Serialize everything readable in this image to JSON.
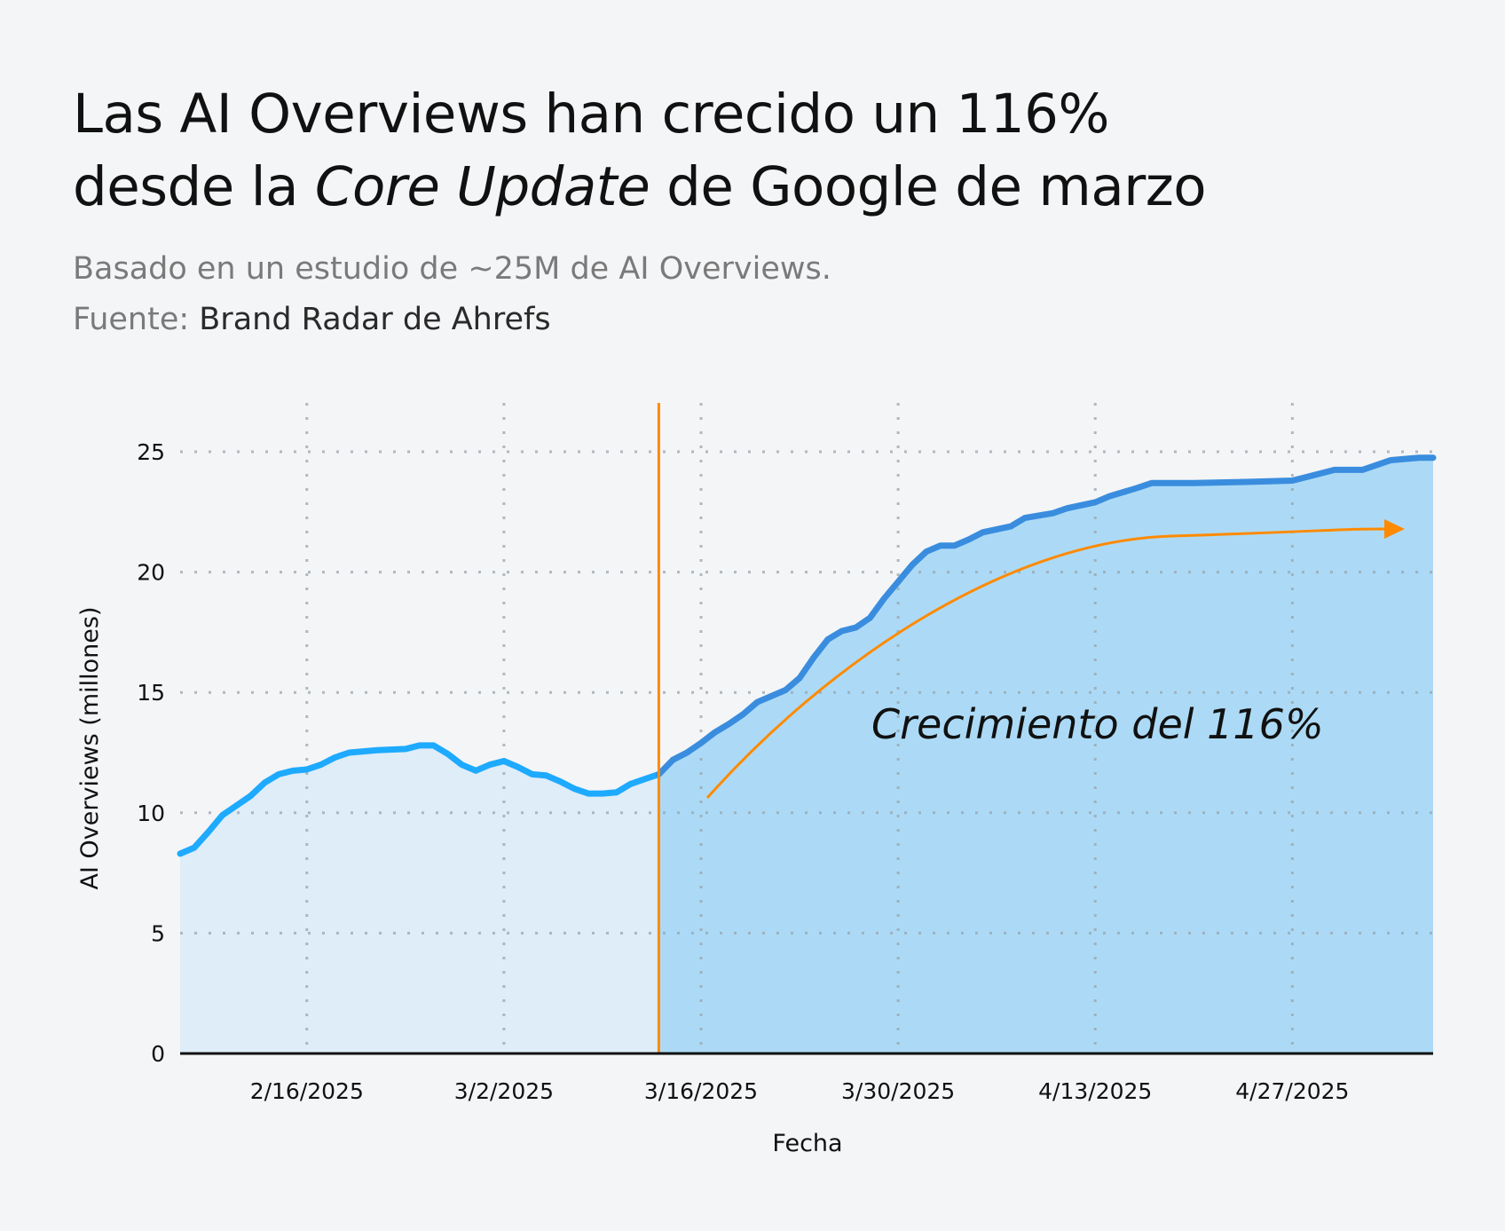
{
  "title": {
    "line1": "Las AI Overviews han crecido un 116%",
    "line2_pre": "desde la ",
    "line2_italic": "Core Update",
    "line2_post": " de Google de marzo"
  },
  "subtitle": "Basado en un estudio de ~25M de AI Overviews.",
  "source_label": "Fuente: ",
  "source_name": "Brand Radar de Ahrefs",
  "colors": {
    "background": "#f4f5f7",
    "before_line": "#1eaaff",
    "after_line": "#3a8dde",
    "before_fill": "#deedf7",
    "after_fill": "#acdaf6",
    "event_line": "#ff8a00",
    "arrow": "#ff8a00"
  },
  "chart_data": {
    "type": "area",
    "title": "Las AI Overviews han crecido un 116% desde la Core Update de Google de marzo",
    "xlabel": "Fecha",
    "ylabel": "AI Overviews (millones)",
    "ylim": [
      0,
      27
    ],
    "xlim": [
      "2025-02-07",
      "2025-05-07"
    ],
    "yticks": [
      0,
      5,
      10,
      15,
      20,
      25
    ],
    "xticks": [
      "2/16/2025",
      "3/2/2025",
      "3/16/2025",
      "3/30/2025",
      "4/13/2025",
      "4/27/2025"
    ],
    "grid": true,
    "event_date": "2025-03-13",
    "annotation": "Crecimiento del 116%",
    "x": [
      "2025-02-07",
      "2025-02-08",
      "2025-02-09",
      "2025-02-10",
      "2025-02-12",
      "2025-02-13",
      "2025-02-14",
      "2025-02-15",
      "2025-02-16",
      "2025-02-17",
      "2025-02-18",
      "2025-02-19",
      "2025-02-21",
      "2025-02-23",
      "2025-02-24",
      "2025-02-25",
      "2025-02-26",
      "2025-02-27",
      "2025-02-28",
      "2025-03-01",
      "2025-03-02",
      "2025-03-03",
      "2025-03-04",
      "2025-03-05",
      "2025-03-06",
      "2025-03-07",
      "2025-03-08",
      "2025-03-09",
      "2025-03-10",
      "2025-03-11",
      "2025-03-12",
      "2025-03-13",
      "2025-03-14",
      "2025-03-15",
      "2025-03-16",
      "2025-03-17",
      "2025-03-18",
      "2025-03-19",
      "2025-03-20",
      "2025-03-22",
      "2025-03-23",
      "2025-03-24",
      "2025-03-25",
      "2025-03-26",
      "2025-03-27",
      "2025-03-28",
      "2025-03-29",
      "2025-03-30",
      "2025-03-31",
      "2025-04-01",
      "2025-04-02",
      "2025-04-03",
      "2025-04-04",
      "2025-04-05",
      "2025-04-07",
      "2025-04-08",
      "2025-04-10",
      "2025-04-11",
      "2025-04-13",
      "2025-04-14",
      "2025-04-16",
      "2025-04-17",
      "2025-04-20",
      "2025-04-24",
      "2025-04-27",
      "2025-04-28",
      "2025-04-30",
      "2025-05-02",
      "2025-05-04",
      "2025-05-06",
      "2025-05-07"
    ],
    "values": [
      8.3,
      8.55,
      9.2,
      9.9,
      10.7,
      11.25,
      11.6,
      11.75,
      11.8,
      12.0,
      12.3,
      12.5,
      12.6,
      12.65,
      12.8,
      12.8,
      12.45,
      12.0,
      11.75,
      12.0,
      12.15,
      11.9,
      11.6,
      11.55,
      11.3,
      11.0,
      10.8,
      10.8,
      10.85,
      11.2,
      11.4,
      11.6,
      12.2,
      12.5,
      12.9,
      13.35,
      13.7,
      14.1,
      14.6,
      15.1,
      15.6,
      16.45,
      17.2,
      17.55,
      17.7,
      18.1,
      18.9,
      19.6,
      20.3,
      20.85,
      21.1,
      21.1,
      21.35,
      21.65,
      21.9,
      22.25,
      22.45,
      22.65,
      22.9,
      23.15,
      23.5,
      23.7,
      23.7,
      23.75,
      23.8,
      23.95,
      24.25,
      24.25,
      24.65,
      24.75,
      24.75
    ]
  }
}
